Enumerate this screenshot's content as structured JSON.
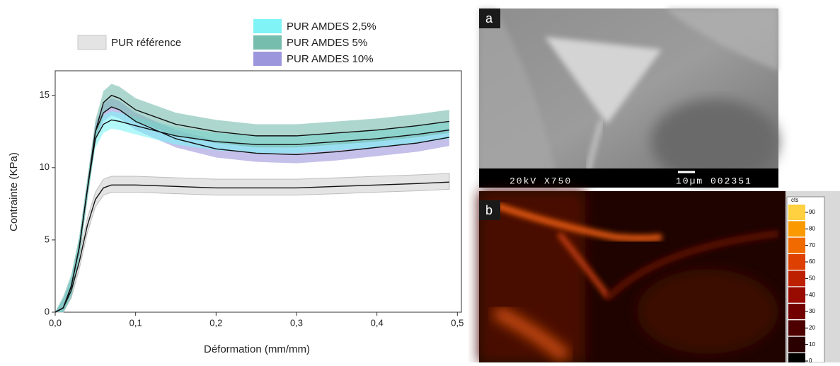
{
  "chart_data": {
    "type": "band-line",
    "xlabel": "Déformation (mm/mm)",
    "ylabel": "Contrainte (KPa)",
    "xlim": [
      0,
      0.505
    ],
    "ylim": [
      0,
      16.7
    ],
    "xticks": [
      {
        "value": 0,
        "label": "0,0"
      },
      {
        "value": 0.1,
        "label": "0,1"
      },
      {
        "value": 0.2,
        "label": "0,2"
      },
      {
        "value": 0.3,
        "label": "0,3"
      },
      {
        "value": 0.4,
        "label": "0,4"
      },
      {
        "value": 0.5,
        "label": "0,5"
      }
    ],
    "yticks": [
      0,
      5,
      10,
      15
    ],
    "x": [
      0,
      0.01,
      0.02,
      0.03,
      0.04,
      0.05,
      0.06,
      0.07,
      0.08,
      0.1,
      0.15,
      0.2,
      0.25,
      0.3,
      0.35,
      0.4,
      0.45,
      0.49
    ],
    "series": [
      {
        "name": "PUR référence",
        "color": "#e4e4e4",
        "values": [
          0,
          0.3,
          1.5,
          3.5,
          6,
          7.8,
          8.6,
          8.8,
          8.8,
          8.8,
          8.7,
          8.6,
          8.6,
          8.6,
          8.7,
          8.8,
          8.9,
          9.0
        ],
        "lower": [
          0,
          0,
          1.0,
          3.0,
          5.5,
          7.3,
          8.1,
          8.3,
          8.3,
          8.3,
          8.2,
          8.1,
          8.1,
          8.1,
          8.2,
          8.3,
          8.4,
          8.5
        ],
        "upper": [
          0,
          0.8,
          2.0,
          4.0,
          6.5,
          8.3,
          9.2,
          9.4,
          9.4,
          9.4,
          9.3,
          9.2,
          9.2,
          9.2,
          9.3,
          9.4,
          9.5,
          9.6
        ]
      },
      {
        "name": "PUR AMDES 2,5%",
        "color": "#7ff3f5",
        "values": [
          0,
          0.3,
          1.8,
          4.5,
          8.5,
          12.0,
          13.0,
          13.3,
          13.2,
          12.9,
          12.2,
          11.8,
          11.6,
          11.6,
          11.8,
          12.0,
          12.3,
          12.6
        ],
        "lower": [
          0,
          0,
          1.2,
          3.9,
          7.9,
          11.4,
          12.4,
          12.7,
          12.6,
          12.3,
          11.6,
          11.2,
          11.0,
          11.0,
          11.2,
          11.4,
          11.7,
          12.0
        ],
        "upper": [
          0,
          0.9,
          2.4,
          5.1,
          9.1,
          12.6,
          13.6,
          13.9,
          13.8,
          13.5,
          12.8,
          12.4,
          12.2,
          12.2,
          12.4,
          12.6,
          12.9,
          13.2
        ]
      },
      {
        "name": "PUR AMDES 5%",
        "color": "#76bdae",
        "values": [
          0,
          0.3,
          1.8,
          4.5,
          8.5,
          12.5,
          14.5,
          15.0,
          14.8,
          14.0,
          13.0,
          12.5,
          12.2,
          12.2,
          12.4,
          12.6,
          12.9,
          13.2
        ],
        "lower": [
          0,
          0,
          1.0,
          3.7,
          7.7,
          11.7,
          13.7,
          14.2,
          14.0,
          13.2,
          12.2,
          11.7,
          11.4,
          11.4,
          11.6,
          11.8,
          12.1,
          12.4
        ],
        "upper": [
          0,
          1.1,
          2.6,
          5.3,
          9.3,
          13.3,
          15.3,
          15.8,
          15.6,
          14.8,
          13.8,
          13.3,
          13.0,
          13.0,
          13.2,
          13.4,
          13.7,
          14.0
        ]
      },
      {
        "name": "PUR AMDES 10%",
        "color": "#9c96dc",
        "values": [
          0,
          0.3,
          1.8,
          4.5,
          8.5,
          12.5,
          13.8,
          14.2,
          14.0,
          13.2,
          12.0,
          11.3,
          11.0,
          10.9,
          11.1,
          11.4,
          11.7,
          12.1
        ],
        "lower": [
          0,
          0,
          1.2,
          3.9,
          7.9,
          11.9,
          13.2,
          13.6,
          13.4,
          12.6,
          11.4,
          10.7,
          10.4,
          10.3,
          10.5,
          10.8,
          11.1,
          11.5
        ],
        "upper": [
          0,
          0.9,
          2.4,
          5.1,
          9.1,
          13.1,
          14.4,
          14.8,
          14.6,
          13.8,
          12.6,
          11.9,
          11.6,
          11.5,
          11.7,
          12.0,
          12.3,
          12.7
        ]
      }
    ]
  },
  "figures": [
    {
      "label": "a",
      "caption_left": "20kV X750",
      "caption_right": "10µm 002351"
    },
    {
      "label": "b",
      "colorbar_title": "cts",
      "colorbar_ticks": [
        0,
        10,
        20,
        30,
        40,
        50,
        60,
        70,
        80,
        90
      ]
    }
  ]
}
